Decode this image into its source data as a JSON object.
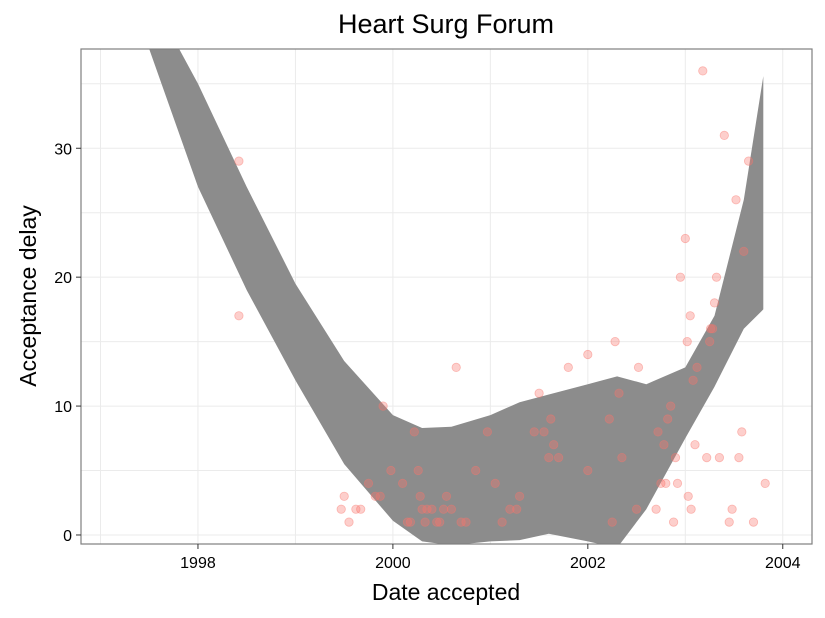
{
  "chart_data": {
    "type": "scatter",
    "title": "Heart Surg Forum",
    "xlabel": "Date accepted",
    "ylabel": "Acceptance delay",
    "xlim": [
      1996.8,
      2004.3
    ],
    "ylim": [
      -0.7,
      37.7
    ],
    "x_ticks": [
      1998,
      2000,
      2002,
      2004
    ],
    "x_tick_labels": [
      "1998",
      "2000",
      "2002",
      "2004"
    ],
    "y_ticks": [
      0,
      10,
      20,
      30
    ],
    "y_tick_labels": [
      "0",
      "10",
      "20",
      "30"
    ],
    "grid": true,
    "legend": "none",
    "colors": {
      "points": "#f8766d",
      "ribbon": "#8c8c8c",
      "grid": "#ebebeb",
      "panel_border": "#7f7f7f"
    },
    "ribbon": {
      "x": [
        1997.5,
        1998.0,
        1998.5,
        1999.0,
        1999.5,
        2000.0,
        2000.3,
        2000.6,
        2001.0,
        2001.3,
        2001.6,
        2002.0,
        2002.3,
        2002.6,
        2003.0,
        2003.3,
        2003.6,
        2003.8
      ],
      "upper": [
        42.0,
        35.0,
        27.0,
        19.5,
        13.5,
        9.3,
        8.3,
        8.4,
        9.3,
        10.3,
        10.9,
        11.7,
        12.3,
        11.7,
        13.0,
        17.0,
        26.0,
        35.6
      ],
      "lower": [
        37.7,
        27.0,
        19.0,
        12.0,
        5.5,
        1.1,
        -0.5,
        -0.8,
        -0.5,
        -0.4,
        0.1,
        -0.5,
        -1.0,
        2.0,
        7.5,
        11.5,
        16.0,
        17.5
      ]
    },
    "points": {
      "x": [
        1998.42,
        1998.42,
        1999.47,
        1999.5,
        1999.55,
        1999.62,
        1999.67,
        1999.75,
        1999.82,
        1999.87,
        1999.9,
        1999.98,
        2000.1,
        2000.15,
        2000.18,
        2000.22,
        2000.26,
        2000.28,
        2000.3,
        2000.33,
        2000.35,
        2000.4,
        2000.45,
        2000.48,
        2000.52,
        2000.55,
        2000.6,
        2000.65,
        2000.7,
        2000.75,
        2000.85,
        2000.97,
        2001.05,
        2001.12,
        2001.2,
        2001.27,
        2001.3,
        2001.45,
        2001.5,
        2001.55,
        2001.6,
        2001.62,
        2001.65,
        2001.7,
        2001.8,
        2002.0,
        2002.0,
        2002.22,
        2002.25,
        2002.28,
        2002.32,
        2002.35,
        2002.5,
        2002.52,
        2002.7,
        2002.72,
        2002.75,
        2002.78,
        2002.8,
        2002.82,
        2002.85,
        2002.88,
        2002.9,
        2002.92,
        2002.95,
        2003.0,
        2003.02,
        2003.03,
        2003.05,
        2003.06,
        2003.08,
        2003.1,
        2003.12,
        2003.18,
        2003.22,
        2003.25,
        2003.26,
        2003.28,
        2003.3,
        2003.32,
        2003.35,
        2003.4,
        2003.45,
        2003.48,
        2003.52,
        2003.55,
        2003.58,
        2003.6,
        2003.65,
        2003.7,
        2003.82
      ],
      "y": [
        29,
        17,
        2,
        3,
        1,
        2,
        2,
        4,
        3,
        3,
        10,
        5,
        4,
        1,
        1,
        8,
        5,
        3,
        2,
        1,
        2,
        2,
        1,
        1,
        2,
        3,
        2,
        13,
        1,
        1,
        5,
        8,
        4,
        1,
        2,
        2,
        3,
        8,
        11,
        8,
        6,
        9,
        7,
        6,
        13,
        14,
        5,
        9,
        1,
        15,
        11,
        6,
        2,
        13,
        2,
        8,
        4,
        7,
        4,
        9,
        10,
        1,
        6,
        4,
        20,
        23,
        15,
        3,
        17,
        2,
        12,
        7,
        13,
        36,
        6,
        15,
        16,
        16,
        18,
        20,
        6,
        31,
        1,
        2,
        26,
        6,
        8,
        22,
        29,
        1,
        4
      ]
    }
  }
}
